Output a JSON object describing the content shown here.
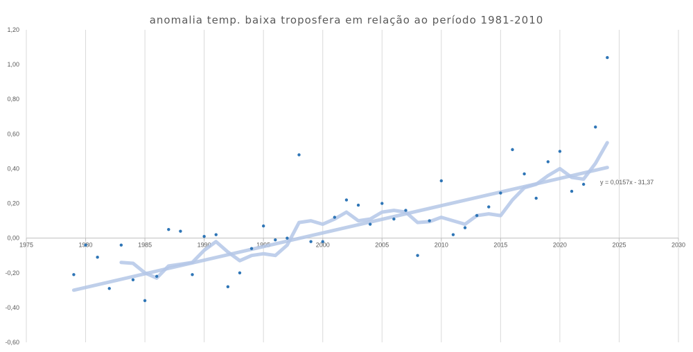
{
  "chart_data": {
    "type": "scatter",
    "title": "anomalia temp. baixa troposfera  em relação ao período  1981-2010",
    "xlim": [
      1975,
      2030
    ],
    "ylim": [
      -0.6,
      1.2
    ],
    "x_ticks": [
      1975,
      1980,
      1985,
      1990,
      1995,
      2000,
      2005,
      2010,
      2015,
      2020,
      2025,
      2030
    ],
    "x_tick_labels": [
      "1975",
      "1980",
      "1985",
      "1990",
      "1995",
      "2000",
      "2005",
      "2010",
      "2015",
      "2020",
      "2025",
      "2030"
    ],
    "y_ticks": [
      1.2,
      1.0,
      0.8,
      0.6,
      0.4,
      0.2,
      0.0,
      -0.2,
      -0.4,
      -0.6
    ],
    "y_tick_labels": [
      "1,20",
      "1,00",
      "0,80",
      "0,60",
      "0,40",
      "0,20",
      "0,00",
      "-0,20",
      "-0,40",
      "-0,60"
    ],
    "grid": "vertical",
    "colors": {
      "points": "#2E75B6",
      "trend": "#B4C7E7",
      "moving_average": "#B4C7E7",
      "grid": "#D9D9D9",
      "text": "#595959"
    },
    "points": {
      "x": [
        1979,
        1980,
        1981,
        1982,
        1983,
        1984,
        1985,
        1986,
        1987,
        1988,
        1989,
        1990,
        1991,
        1992,
        1993,
        1994,
        1995,
        1996,
        1997,
        1998,
        1999,
        2000,
        2001,
        2002,
        2003,
        2004,
        2005,
        2006,
        2007,
        2008,
        2009,
        2010,
        2011,
        2012,
        2013,
        2014,
        2015,
        2016,
        2017,
        2018,
        2019,
        2020,
        2021,
        2022,
        2023,
        2024
      ],
      "y": [
        -0.21,
        -0.04,
        -0.11,
        -0.29,
        -0.04,
        -0.24,
        -0.36,
        -0.22,
        0.05,
        0.04,
        -0.21,
        0.01,
        0.02,
        -0.28,
        -0.2,
        -0.06,
        0.07,
        -0.01,
        0.0,
        0.48,
        -0.02,
        -0.02,
        0.12,
        0.22,
        0.19,
        0.08,
        0.2,
        0.11,
        0.16,
        -0.1,
        0.1,
        0.33,
        0.02,
        0.06,
        0.13,
        0.18,
        0.26,
        0.51,
        0.37,
        0.23,
        0.44,
        0.5,
        0.27,
        0.31,
        0.64,
        1.04
      ]
    },
    "moving_average": {
      "x": [
        1983,
        1984,
        1985,
        1986,
        1987,
        1988,
        1989,
        1990,
        1991,
        1992,
        1993,
        1994,
        1995,
        1996,
        1997,
        1998,
        1999,
        2000,
        2001,
        2002,
        2003,
        2004,
        2005,
        2006,
        2007,
        2008,
        2009,
        2010,
        2011,
        2012,
        2013,
        2014,
        2015,
        2016,
        2017,
        2018,
        2019,
        2020,
        2021,
        2022,
        2023,
        2024
      ],
      "y": [
        -0.14,
        -0.145,
        -0.2,
        -0.23,
        -0.16,
        -0.15,
        -0.14,
        -0.07,
        -0.02,
        -0.08,
        -0.13,
        -0.1,
        -0.09,
        -0.1,
        -0.04,
        0.09,
        0.1,
        0.08,
        0.11,
        0.15,
        0.1,
        0.11,
        0.15,
        0.16,
        0.15,
        0.09,
        0.095,
        0.12,
        0.1,
        0.08,
        0.13,
        0.14,
        0.13,
        0.22,
        0.29,
        0.31,
        0.36,
        0.4,
        0.35,
        0.34,
        0.43,
        0.55
      ]
    },
    "trendline": {
      "equation": "y = 0,0157x - 31,37",
      "slope": 0.0157,
      "intercept": -31.37,
      "x_range": [
        1979,
        2024
      ]
    }
  }
}
